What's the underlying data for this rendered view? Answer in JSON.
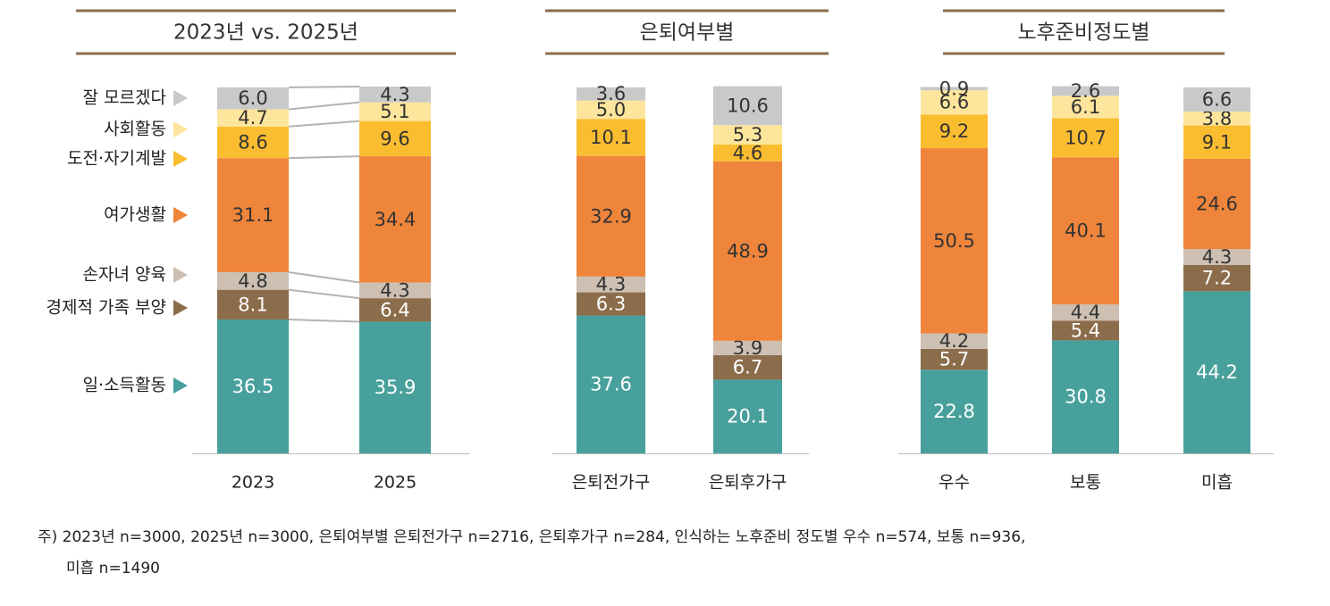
{
  "chart_data": [
    {
      "type": "stacked_bar",
      "title": "2023년 vs. 2025년",
      "categories": [
        "2023",
        "2025"
      ],
      "ylim": [
        0,
        100
      ],
      "series": [
        {
          "name": "일·소득활동",
          "color": "#48a09c",
          "values": [
            36.5,
            35.9
          ],
          "value_labels": [
            "36.5",
            "35.9"
          ]
        },
        {
          "name": "경제적 가족 부양",
          "color": "#8b6d4b",
          "values": [
            8.1,
            6.4
          ],
          "value_labels": [
            "8.1",
            "6.4"
          ]
        },
        {
          "name": "손자녀 양육",
          "color": "#cdbfb1",
          "values": [
            4.8,
            4.3
          ],
          "value_labels": [
            "4.8",
            "4.3"
          ]
        },
        {
          "name": "여가생활",
          "color": "#ef853b",
          "values": [
            31.1,
            34.4
          ],
          "value_labels": [
            "31.1",
            "34.4"
          ]
        },
        {
          "name": "도전·자기계발",
          "color": "#fbbd30",
          "values": [
            8.6,
            9.6
          ],
          "value_labels": [
            "8.6",
            "9.6"
          ]
        },
        {
          "name": "사회활동",
          "color": "#fde59c",
          "values": [
            4.7,
            5.1
          ],
          "value_labels": [
            "4.7",
            "5.1"
          ]
        },
        {
          "name": "잘 모르겠다",
          "color": "#c9c9c9",
          "values": [
            6.0,
            4.3
          ],
          "value_labels": [
            "6.0",
            "4.3"
          ]
        }
      ]
    },
    {
      "type": "stacked_bar",
      "title": "은퇴여부별",
      "categories": [
        "은퇴전가구",
        "은퇴후가구"
      ],
      "ylim": [
        0,
        100
      ],
      "series": [
        {
          "color": "#48a09c",
          "values": [
            37.6,
            20.1
          ],
          "value_labels": [
            "37.6",
            "20.1"
          ]
        },
        {
          "color": "#8b6d4b",
          "values": [
            6.3,
            6.7
          ],
          "value_labels": [
            "6.3",
            "6.7"
          ]
        },
        {
          "color": "#cdbfb1",
          "values": [
            4.3,
            3.9
          ],
          "value_labels": [
            "4.3",
            "3.9"
          ]
        },
        {
          "color": "#ef853b",
          "values": [
            32.9,
            48.9
          ],
          "value_labels": [
            "32.9",
            "48.9"
          ]
        },
        {
          "color": "#fbbd30",
          "values": [
            10.1,
            4.6
          ],
          "value_labels": [
            "10.1",
            "4.6"
          ]
        },
        {
          "color": "#fde59c",
          "values": [
            5.0,
            5.3
          ],
          "value_labels": [
            "5.0",
            "5.3"
          ]
        },
        {
          "color": "#c9c9c9",
          "values": [
            3.6,
            10.6
          ],
          "value_labels": [
            "3.6",
            "10.6"
          ]
        }
      ]
    },
    {
      "type": "stacked_bar",
      "title": "노후준비정도별",
      "categories": [
        "우수",
        "보통",
        "미흡"
      ],
      "ylim": [
        0,
        100
      ],
      "series": [
        {
          "color": "#48a09c",
          "values": [
            22.8,
            30.8,
            44.2
          ],
          "value_labels": [
            "22.8",
            "30.8",
            "44.2"
          ]
        },
        {
          "color": "#8b6d4b",
          "values": [
            5.7,
            5.4,
            7.2
          ],
          "value_labels": [
            "5.7",
            "5.4",
            "7.2"
          ]
        },
        {
          "color": "#cdbfb1",
          "values": [
            4.2,
            4.4,
            4.3
          ],
          "value_labels": [
            "4.2",
            "4.4",
            "4.3"
          ]
        },
        {
          "color": "#ef853b",
          "values": [
            50.5,
            40.1,
            24.6
          ],
          "value_labels": [
            "50.5",
            "40.1",
            "24.6"
          ]
        },
        {
          "color": "#fbbd30",
          "values": [
            9.2,
            10.7,
            9.1
          ],
          "value_labels": [
            "9.2",
            "10.7",
            "9.1"
          ]
        },
        {
          "color": "#fde59c",
          "values": [
            6.6,
            6.1,
            3.8
          ],
          "value_labels": [
            "6.6",
            "6.1",
            "3.8"
          ]
        },
        {
          "color": "#c9c9c9",
          "values": [
            0.9,
            2.6,
            6.6
          ],
          "value_labels": [
            "0.9",
            "2.6",
            "6.6"
          ]
        }
      ]
    }
  ],
  "footnote": [
    "주) 2023년 n=3000, 2025년 n=3000, 은퇴여부별 은퇴전가구 n=2716, 은퇴후가구 n=284, 인식하는 노후준비 정도별 우수 n=574, 보통 n=936,",
    "미흡 n=1490"
  ]
}
